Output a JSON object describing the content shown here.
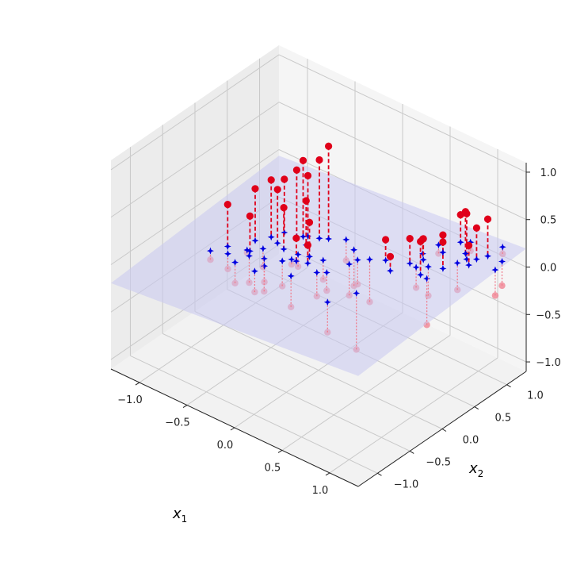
{
  "chart_data": {
    "type": "scatter3d",
    "title": "",
    "xlabel": "x",
    "xlabel_sub": "1",
    "ylabel": "x",
    "ylabel_sub": "2",
    "zlabel": "",
    "xlim": [
      -1.3,
      1.3
    ],
    "ylim": [
      -1.3,
      1.3
    ],
    "zlim": [
      -1.1,
      1.1
    ],
    "x_ticks": [
      "−1.0",
      "−0.5",
      "0.0",
      "0.5",
      "1.0"
    ],
    "y_ticks": [
      "−1.0",
      "−0.5",
      "0.0",
      "0.5",
      "1.0"
    ],
    "z_ticks": [
      "−1.0",
      "−0.5",
      "0.0",
      "0.5",
      "1.0"
    ],
    "grid": true,
    "projection_plane_color": "#c8c8f0",
    "colors": {
      "above": "#e0001a",
      "below": "#f07c8c",
      "projection": "#0000e0"
    },
    "series": [
      {
        "kind": "points_above_plane",
        "marker": "circle",
        "values": [
          [
            -0.82,
            -0.2,
            0.35
          ],
          [
            -0.62,
            -0.15,
            0.3
          ],
          [
            -0.68,
            0.02,
            0.48
          ],
          [
            -0.6,
            0.15,
            0.55
          ],
          [
            -0.42,
            0.28,
            0.68
          ],
          [
            -0.55,
            0.28,
            0.52
          ],
          [
            -0.35,
            0.35,
            0.62
          ],
          [
            -0.25,
            0.38,
            0.82
          ],
          [
            -0.18,
            0.42,
            0.98
          ],
          [
            -0.38,
            0.32,
            0.78
          ],
          [
            -0.28,
            0.22,
            0.45
          ],
          [
            -0.15,
            0.08,
            0.35
          ],
          [
            -0.2,
            -0.05,
            0.22
          ],
          [
            -0.1,
            -0.02,
            0.18
          ],
          [
            0.42,
            0.42,
            0.28
          ],
          [
            0.78,
            1.05,
            0.42
          ],
          [
            0.98,
            0.85,
            0.62
          ],
          [
            1.05,
            0.78,
            0.35
          ],
          [
            0.9,
            0.6,
            0.4
          ],
          [
            0.62,
            0.7,
            0.25
          ],
          [
            0.62,
            0.5,
            0.35
          ],
          [
            0.92,
            0.92,
            0.58
          ],
          [
            1.1,
            1.0,
            0.55
          ],
          [
            0.75,
            0.82,
            0.3
          ],
          [
            0.55,
            0.3,
            0.22
          ],
          [
            0.8,
            0.4,
            0.45
          ],
          [
            1.05,
            0.9,
            0.48
          ],
          [
            0.68,
            0.62,
            0.32
          ],
          [
            -0.4,
            0.05,
            0.4
          ],
          [
            -0.5,
            0.1,
            0.52
          ]
        ]
      },
      {
        "kind": "points_below_plane",
        "marker": "circle",
        "values": [
          [
            -0.9,
            -0.35,
            -0.2
          ],
          [
            -0.75,
            -0.3,
            -0.25
          ],
          [
            -0.62,
            -0.38,
            -0.3
          ],
          [
            -0.58,
            -0.22,
            -0.35
          ],
          [
            -0.45,
            -0.18,
            -0.4
          ],
          [
            -0.4,
            -0.4,
            -0.28
          ],
          [
            -0.38,
            -0.28,
            -0.22
          ],
          [
            -0.3,
            -0.12,
            -0.3
          ],
          [
            -0.1,
            -0.28,
            -0.35
          ],
          [
            0.05,
            -0.1,
            -0.25
          ],
          [
            0.2,
            0.18,
            -0.3
          ],
          [
            0.12,
            -0.05,
            -0.18
          ],
          [
            0.3,
            0.35,
            -0.4
          ],
          [
            0.52,
            -0.18,
            -0.55
          ],
          [
            0.4,
            -0.45,
            -0.3
          ],
          [
            -0.05,
            0.5,
            -0.2
          ],
          [
            0.22,
            0.28,
            -0.22
          ],
          [
            0.88,
            0.38,
            -0.38
          ],
          [
            0.7,
            0.48,
            -0.12
          ],
          [
            0.95,
            0.75,
            -0.15
          ],
          [
            1.25,
            1.0,
            -0.08
          ],
          [
            1.28,
            0.85,
            -0.1
          ],
          [
            0.78,
            0.55,
            -0.2
          ],
          [
            0.85,
            1.1,
            0.05
          ],
          [
            1.12,
            1.2,
            0.1
          ],
          [
            -0.25,
            -0.05,
            -0.08
          ],
          [
            -0.55,
            -0.05,
            -0.25
          ],
          [
            -0.25,
            0.05,
            -0.15
          ],
          [
            0.1,
            0.4,
            -0.35
          ],
          [
            -0.65,
            -0.15,
            -0.1
          ],
          [
            -0.02,
            0.1,
            -0.2
          ],
          [
            0.65,
            0.9,
            0.02
          ]
        ]
      }
    ]
  }
}
